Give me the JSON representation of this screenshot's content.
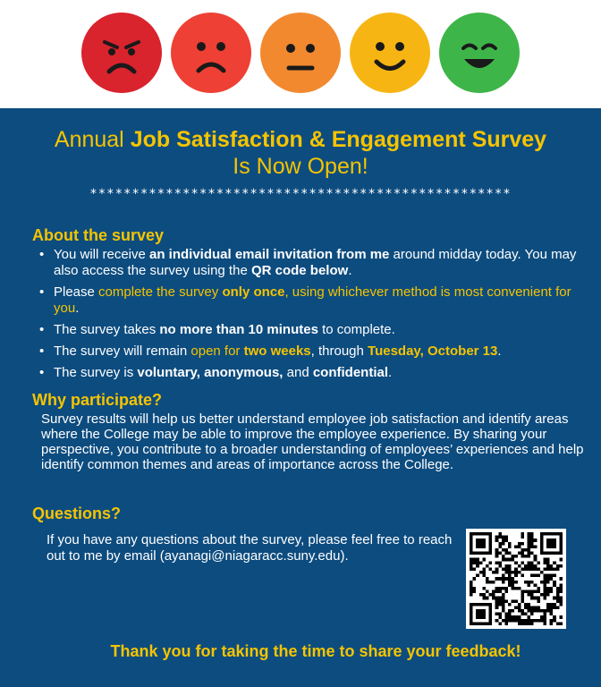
{
  "faces": [
    {
      "name": "angry-face-icon",
      "color": "#d9232d"
    },
    {
      "name": "sad-face-icon",
      "color": "#ee4034"
    },
    {
      "name": "neutral-face-icon",
      "color": "#f2892e"
    },
    {
      "name": "smile-face-icon",
      "color": "#f7b514"
    },
    {
      "name": "happy-face-icon",
      "color": "#3eb549"
    }
  ],
  "colors": {
    "panel_bg": "#0d4c7f",
    "accent": "#f5c400",
    "text": "#ffffff"
  },
  "title": {
    "line1_prefix": "Annual ",
    "line1_bold": "Job Satisfaction & Engagement Survey",
    "line2": "Is Now Open!"
  },
  "divider": "**************************************************",
  "about": {
    "heading": "About the survey",
    "b1": {
      "t1": "You will receive ",
      "b1": "an individual email invitation from me",
      "t2": " around midday today. You may also access the survey using the ",
      "b2": "QR code below",
      "t3": "."
    },
    "b2": {
      "t1": "Please ",
      "y1": "complete the survey ",
      "yb": "only once",
      "y2": ", using whichever method is most convenient for you",
      "t2": "."
    },
    "b3": {
      "t1": "The survey takes ",
      "b1": "no more than 10 minutes",
      "t2": " to complete."
    },
    "b4": {
      "t1": "The survey will remain ",
      "y1": "open for ",
      "yb1": "two weeks",
      "t2": ", through ",
      "yb2": "Tuesday, October 13",
      "t3": "."
    },
    "b5": {
      "t1": "The survey is ",
      "b1": "voluntary, anonymous,",
      "t2": " and ",
      "b2": "confidential",
      "t3": "."
    }
  },
  "why": {
    "heading": "Why participate?",
    "body": "Survey results will help us better understand employee job satisfaction and identify areas where the College may be able to improve the employee experience. By sharing your perspective, you contribute to a broader understanding of employees’ experiences and help identify common themes and areas of importance across the College."
  },
  "questions": {
    "heading": "Questions?",
    "body": "If you have any questions about the survey, please feel free to reach out to me by email (ayanagi@niagaracc.suny.edu)."
  },
  "qr": {
    "name": "survey-qr-code"
  },
  "thanks": "Thank you for taking the time to share your feedback!"
}
